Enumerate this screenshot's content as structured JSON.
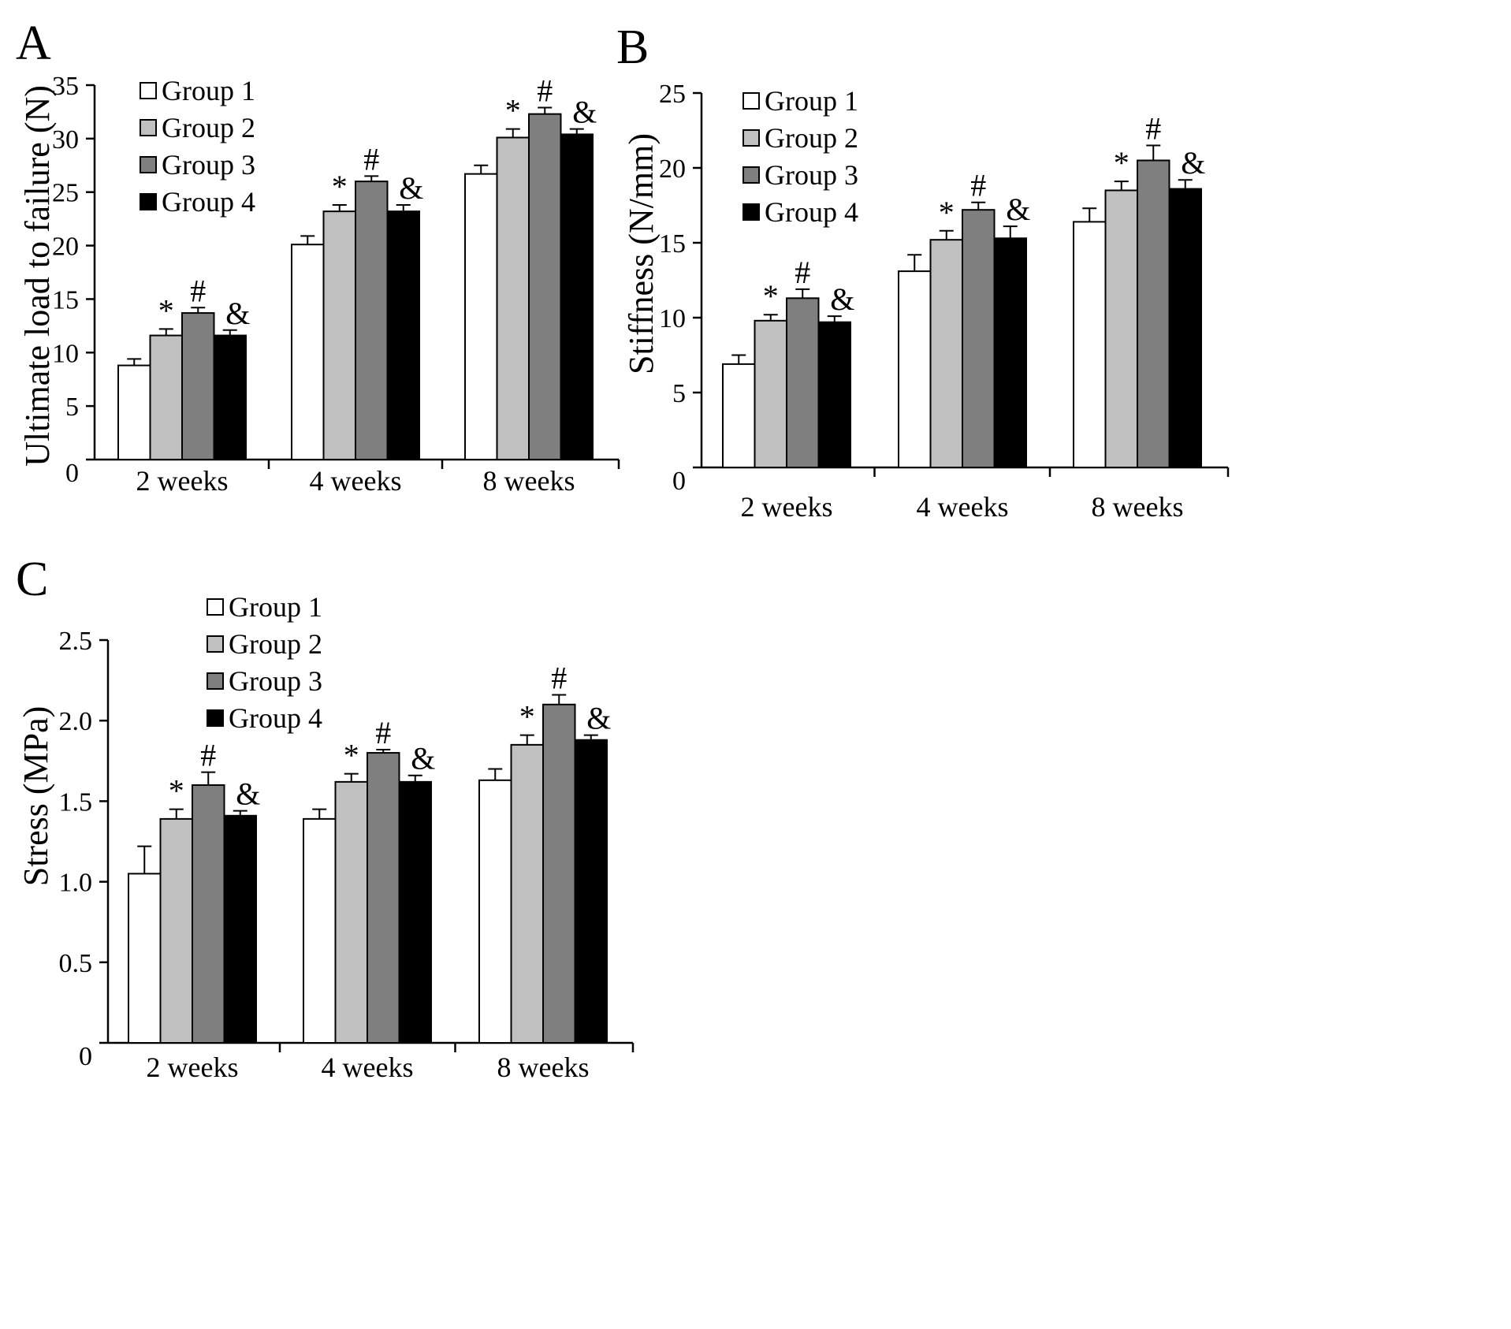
{
  "figure": {
    "panels": [
      "A",
      "B",
      "C"
    ]
  },
  "colors": {
    "group_1": "#ffffff",
    "group_2": "#c0c0c0",
    "group_3": "#7f7f7f",
    "group_4": "#000000",
    "axis": "#000000"
  },
  "chart_data": [
    {
      "panel": "A",
      "type": "bar",
      "title": "",
      "xlabel": "",
      "ylabel": "Ultimate load to failure (N)",
      "ylim": [
        0,
        35
      ],
      "yticks": [
        0,
        5,
        10,
        15,
        20,
        25,
        30,
        35
      ],
      "ytick_labels": [
        "0",
        "5",
        "10",
        "15",
        "20",
        "25",
        "30",
        "35"
      ],
      "grid": false,
      "legend_position": "top-left",
      "categories": [
        "2 weeks",
        "4 weeks",
        "8 weeks"
      ],
      "series": [
        {
          "name": "Group 1",
          "values": [
            8.8,
            20.1,
            26.7
          ],
          "errors": [
            0.6,
            0.8,
            0.8
          ],
          "marker": ""
        },
        {
          "name": "Group 2",
          "values": [
            11.6,
            23.2,
            30.1
          ],
          "errors": [
            0.6,
            0.6,
            0.8
          ],
          "marker": "*"
        },
        {
          "name": "Group 3",
          "values": [
            13.7,
            26.0,
            32.3
          ],
          "errors": [
            0.5,
            0.5,
            0.6
          ],
          "marker": "#"
        },
        {
          "name": "Group 4",
          "values": [
            11.6,
            23.2,
            30.4
          ],
          "errors": [
            0.5,
            0.6,
            0.5
          ],
          "marker": "&"
        }
      ]
    },
    {
      "panel": "B",
      "type": "bar",
      "title": "",
      "xlabel": "",
      "ylabel": "Stiffness (N/mm)",
      "ylim": [
        0,
        25
      ],
      "yticks": [
        0,
        5,
        10,
        15,
        20,
        25
      ],
      "ytick_labels": [
        "0",
        "5",
        "10",
        "15",
        "20",
        "25"
      ],
      "grid": false,
      "legend_position": "top-left",
      "categories": [
        "2 weeks",
        "4 weeks",
        "8  weeks"
      ],
      "series": [
        {
          "name": "Group 1",
          "values": [
            6.9,
            13.1,
            16.4
          ],
          "errors": [
            0.6,
            1.1,
            0.9
          ],
          "marker": ""
        },
        {
          "name": "Group 2",
          "values": [
            9.8,
            15.2,
            18.5
          ],
          "errors": [
            0.4,
            0.6,
            0.6
          ],
          "marker": "*"
        },
        {
          "name": "Group 3",
          "values": [
            11.3,
            17.2,
            20.5
          ],
          "errors": [
            0.6,
            0.5,
            1.0
          ],
          "marker": "#"
        },
        {
          "name": "Group 4",
          "values": [
            9.7,
            15.3,
            18.6
          ],
          "errors": [
            0.4,
            0.8,
            0.6
          ],
          "marker": "&"
        }
      ]
    },
    {
      "panel": "C",
      "type": "bar",
      "title": "",
      "xlabel": "",
      "ylabel": "Stress (MPa)",
      "ylim": [
        0,
        2.5
      ],
      "yticks": [
        0,
        0.5,
        1.0,
        1.5,
        2.0,
        2.5
      ],
      "ytick_labels": [
        "0",
        "0.5",
        "1.0",
        "1.5",
        "2.0",
        "2.5"
      ],
      "grid": false,
      "legend_position": "top-left",
      "categories": [
        "2 weeks",
        "4 weeks",
        "8 weeks"
      ],
      "series": [
        {
          "name": "Group 1",
          "values": [
            1.05,
            1.39,
            1.63
          ],
          "errors": [
            0.17,
            0.06,
            0.07
          ],
          "marker": ""
        },
        {
          "name": "Group 2",
          "values": [
            1.39,
            1.62,
            1.85
          ],
          "errors": [
            0.06,
            0.05,
            0.06
          ],
          "marker": "*"
        },
        {
          "name": "Group 3",
          "values": [
            1.6,
            1.8,
            2.1
          ],
          "errors": [
            0.08,
            0.02,
            0.06
          ],
          "marker": "#"
        },
        {
          "name": "Group 4",
          "values": [
            1.41,
            1.62,
            1.88
          ],
          "errors": [
            0.03,
            0.04,
            0.03
          ],
          "marker": "&"
        }
      ]
    }
  ]
}
